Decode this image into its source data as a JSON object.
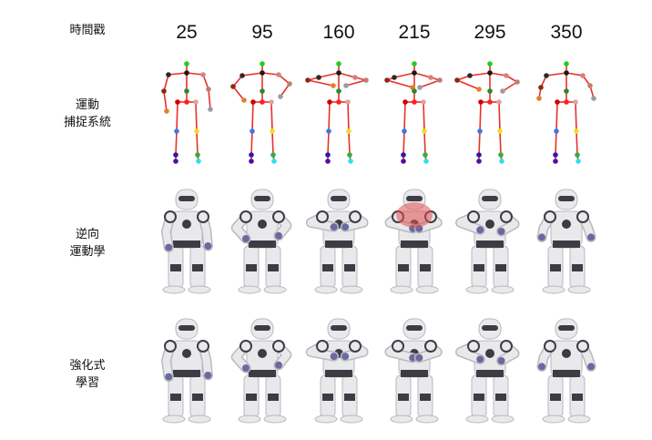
{
  "header": {
    "label": "時間戳"
  },
  "timestamps": [
    "25",
    "95",
    "160",
    "215",
    "295",
    "350"
  ],
  "rows": [
    {
      "key": "mocap",
      "label_lines": [
        "運動",
        "捕捉系統"
      ]
    },
    {
      "key": "ik",
      "label_lines": [
        "逆向",
        "運動學"
      ]
    },
    {
      "key": "rl",
      "label_lines": [
        "強化式",
        "學習"
      ]
    }
  ],
  "skeleton_colors": {
    "limb": "#e8302a",
    "head": "#22cc22",
    "neck": "#1a1a1a",
    "shoulder_r": "#2a2a2a",
    "shoulder_l": "#d88080",
    "elbow_r": "#8a2a10",
    "elbow_l": "#b88070",
    "wrist_r": "#e08030",
    "wrist_l": "#9a9aa8",
    "torso": "#2a8a2a",
    "hip_c": "#ff2020",
    "hip_r": "#d00000",
    "hip_l": "#e0a0a0",
    "knee_r": "#3a7ae0",
    "knee_l": "#f0e020",
    "ankle_r": "#2a1aa8",
    "ankle_l": "#30b040",
    "foot_r": "#5010a0",
    "foot_l": "#30e0f0"
  },
  "robot_colors": {
    "shell": "#e9e9ec",
    "shell_shade": "#b8b8c0",
    "dark": "#3c3c44",
    "accent": "#6a6aa0"
  },
  "highlight_color": "#e05050"
}
